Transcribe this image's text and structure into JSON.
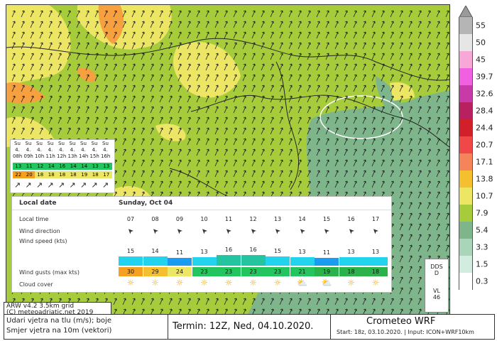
{
  "legend": {
    "unit_label": "m/s",
    "levels": [
      {
        "label": "55",
        "color": "#b5b5b5"
      },
      {
        "label": "50",
        "color": "#e6e6e6"
      },
      {
        "label": "45",
        "color": "#f7a8d6"
      },
      {
        "label": "39.7",
        "color": "#f060e0"
      },
      {
        "label": "32.6",
        "color": "#c83aa8"
      },
      {
        "label": "28.4",
        "color": "#b82060"
      },
      {
        "label": "24.4",
        "color": "#d2202a"
      },
      {
        "label": "20.7",
        "color": "#f04848"
      },
      {
        "label": "17.1",
        "color": "#f6845a"
      },
      {
        "label": "13.8",
        "color": "#f5c030"
      },
      {
        "label": "10.7",
        "color": "#ede665"
      },
      {
        "label": "7.9",
        "color": "#a6cc3c"
      },
      {
        "label": "5.4",
        "color": "#7fb58a"
      },
      {
        "label": "3.3",
        "color": "#a9d6b8"
      },
      {
        "label": "1.5",
        "color": "#d3ece0"
      },
      {
        "label": "0.3",
        "color": "#ffffff"
      }
    ]
  },
  "mini_table": {
    "days": [
      "Su",
      "Su",
      "Su",
      "Su",
      "Su",
      "Su",
      "Su",
      "Su",
      "Su"
    ],
    "dates": [
      "4.",
      "4.",
      "4.",
      "4.",
      "4.",
      "4.",
      "4.",
      "4.",
      "4."
    ],
    "hours": [
      "08h",
      "09h",
      "10h",
      "11h",
      "12h",
      "13h",
      "14h",
      "15h",
      "16h"
    ],
    "wind": [
      {
        "v": "13",
        "c": "#22c55e"
      },
      {
        "v": "11",
        "c": "#22c55e"
      },
      {
        "v": "12",
        "c": "#22c55e"
      },
      {
        "v": "14",
        "c": "#22c55e"
      },
      {
        "v": "16",
        "c": "#22c55e"
      },
      {
        "v": "14",
        "c": "#22c55e"
      },
      {
        "v": "14",
        "c": "#22c55e"
      },
      {
        "v": "13",
        "c": "#22c55e"
      },
      {
        "v": "13",
        "c": "#22c55e"
      }
    ],
    "gust": [
      {
        "v": "22",
        "c": "#f4a020"
      },
      {
        "v": "20",
        "c": "#f4a020"
      },
      {
        "v": "18",
        "c": "#ede665"
      },
      {
        "v": "18",
        "c": "#ede665"
      },
      {
        "v": "18",
        "c": "#ede665"
      },
      {
        "v": "18",
        "c": "#ede665"
      },
      {
        "v": "19",
        "c": "#ede665"
      },
      {
        "v": "18",
        "c": "#ede665"
      },
      {
        "v": "17",
        "c": "#ede665"
      }
    ]
  },
  "panel": {
    "header_left": "Local date",
    "header_right": "Sunday, Oct 04",
    "row_labels": {
      "local_time": "Local time",
      "wind_direction": "Wind direction",
      "wind_speed": "Wind speed (kts)",
      "wind_gusts": "Wind gusts (max kts)",
      "cloud_cover": "Cloud cover"
    },
    "hours": [
      "07",
      "08",
      "09",
      "10",
      "11",
      "12",
      "13",
      "14",
      "15",
      "16",
      "17"
    ],
    "speeds": [
      {
        "v": "15",
        "c": "#22d3ee",
        "level": 0.45
      },
      {
        "v": "14",
        "c": "#22d3ee",
        "level": 0.4
      },
      {
        "v": "11",
        "c": "#1a9cf0",
        "level": 0.25
      },
      {
        "v": "13",
        "c": "#22d3ee",
        "level": 0.35
      },
      {
        "v": "16",
        "c": "#22c5a0",
        "level": 0.55
      },
      {
        "v": "16",
        "c": "#22c5a0",
        "level": 0.55
      },
      {
        "v": "15",
        "c": "#22d3ee",
        "level": 0.45
      },
      {
        "v": "13",
        "c": "#22d3ee",
        "level": 0.35
      },
      {
        "v": "11",
        "c": "#1a9cf0",
        "level": 0.25
      },
      {
        "v": "13",
        "c": "#22d3ee",
        "level": 0.35
      },
      {
        "v": "13",
        "c": "#22d3ee",
        "level": 0.35
      }
    ],
    "gusts": [
      {
        "v": "30",
        "c": "#f4a020"
      },
      {
        "v": "29",
        "c": "#f5c030"
      },
      {
        "v": "24",
        "c": "#ede665"
      },
      {
        "v": "23",
        "c": "#22c55e"
      },
      {
        "v": "23",
        "c": "#22c55e"
      },
      {
        "v": "23",
        "c": "#22c55e"
      },
      {
        "v": "23",
        "c": "#22c55e"
      },
      {
        "v": "21",
        "c": "#22c55e"
      },
      {
        "v": "19",
        "c": "#2ab34a"
      },
      {
        "v": "18",
        "c": "#2ab34a"
      },
      {
        "v": "18",
        "c": "#2ab34a"
      }
    ],
    "cloud_icons": [
      "sun",
      "sun",
      "sun",
      "sun",
      "sun",
      "sun",
      "sun",
      "sun-cloud",
      "sun-cloud",
      "sun",
      "sun"
    ]
  },
  "dds_box": {
    "line1": "DDS",
    "line2": "D",
    "line3": "VL",
    "line4": "46"
  },
  "bottom": {
    "model_line1": "ARW v4.2 3.5km grid",
    "model_line2": "(C) meteoadriatic.net 2019",
    "desc_line1": "Udari vjetra na tlu (m/s); boje",
    "desc_line2": "Smjer vjetra na 10m (vektori)",
    "termin": "Termin: 12Z, Ned, 04.10.2020.",
    "brand": "Crometeo WRF",
    "start": "Start: 18z, 03.10.2020. | Input: ICON+WRF10km"
  }
}
